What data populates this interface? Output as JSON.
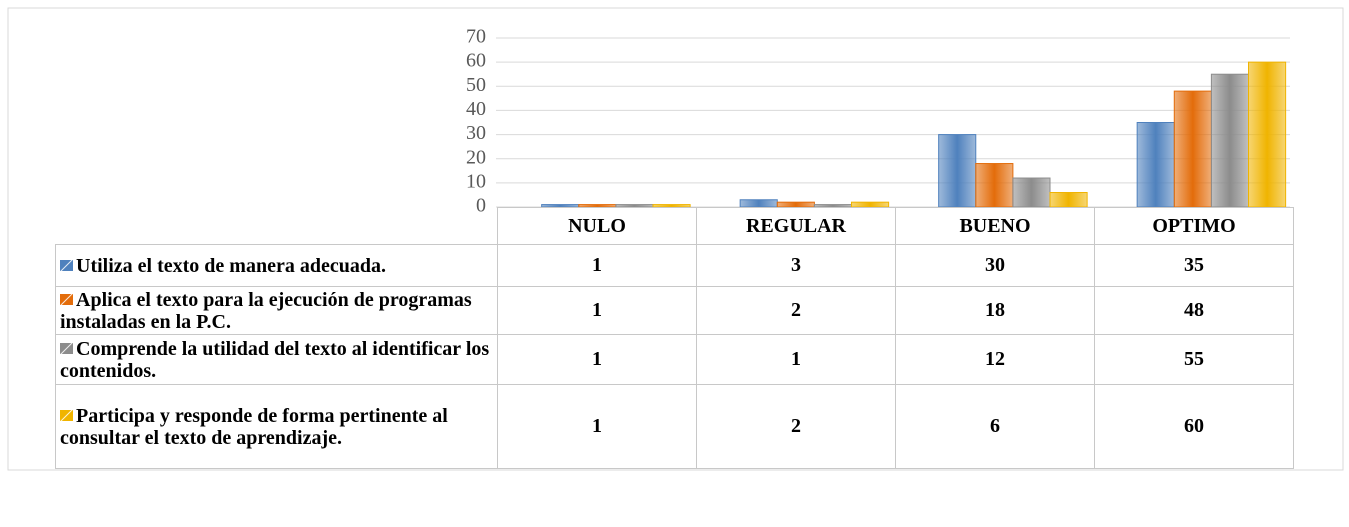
{
  "chart_data": {
    "type": "bar",
    "categories": [
      "NULO",
      "REGULAR",
      "BUENO",
      "OPTIMO"
    ],
    "series": [
      {
        "name": "Utiliza el texto de manera adecuada.",
        "color": "#4f81bd",
        "values": [
          1,
          3,
          30,
          35
        ]
      },
      {
        "name": "Aplica el texto para la ejecución de programas instaladas en la P.C.",
        "color": "#e36c0a",
        "values": [
          1,
          2,
          18,
          48
        ]
      },
      {
        "name": "Comprende la utilidad del texto al identificar los contenidos.",
        "color": "#8c8c8c",
        "values": [
          1,
          1,
          12,
          55
        ]
      },
      {
        "name": "Participa y responde de forma pertinente al consultar el texto de aprendizaje.",
        "color": "#f0b400",
        "values": [
          1,
          2,
          6,
          60
        ]
      }
    ],
    "ylim": [
      0,
      70
    ],
    "yticks": [
      0,
      10,
      20,
      30,
      40,
      50,
      60,
      70
    ],
    "grid": true
  }
}
